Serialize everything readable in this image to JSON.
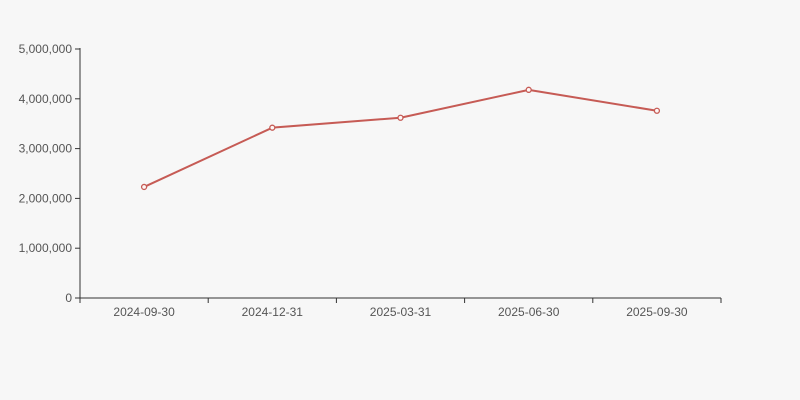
{
  "chart_data": {
    "type": "line",
    "title": "",
    "xlabel": "",
    "ylabel": "",
    "categories": [
      "2024-09-30",
      "2024-12-31",
      "2025-03-31",
      "2025-06-30",
      "2025-09-30"
    ],
    "series": [
      {
        "name": "value",
        "values": [
          2230000,
          3420000,
          3620000,
          4180000,
          3760000
        ]
      }
    ],
    "ylim": [
      0,
      5000000
    ],
    "y_tick_interval": 1000000,
    "y_tick_labels": [
      "0",
      "1,000,000",
      "2,000,000",
      "3,000,000",
      "4,000,000",
      "5,000,000"
    ],
    "grid": false,
    "legend": "none",
    "marker": "open-circle"
  },
  "colors": {
    "background": "#f7f7f7",
    "axis_line": "#333333",
    "tick_label": "#555555",
    "line": "#c65b55",
    "marker_fill": "#fdf7f6"
  }
}
